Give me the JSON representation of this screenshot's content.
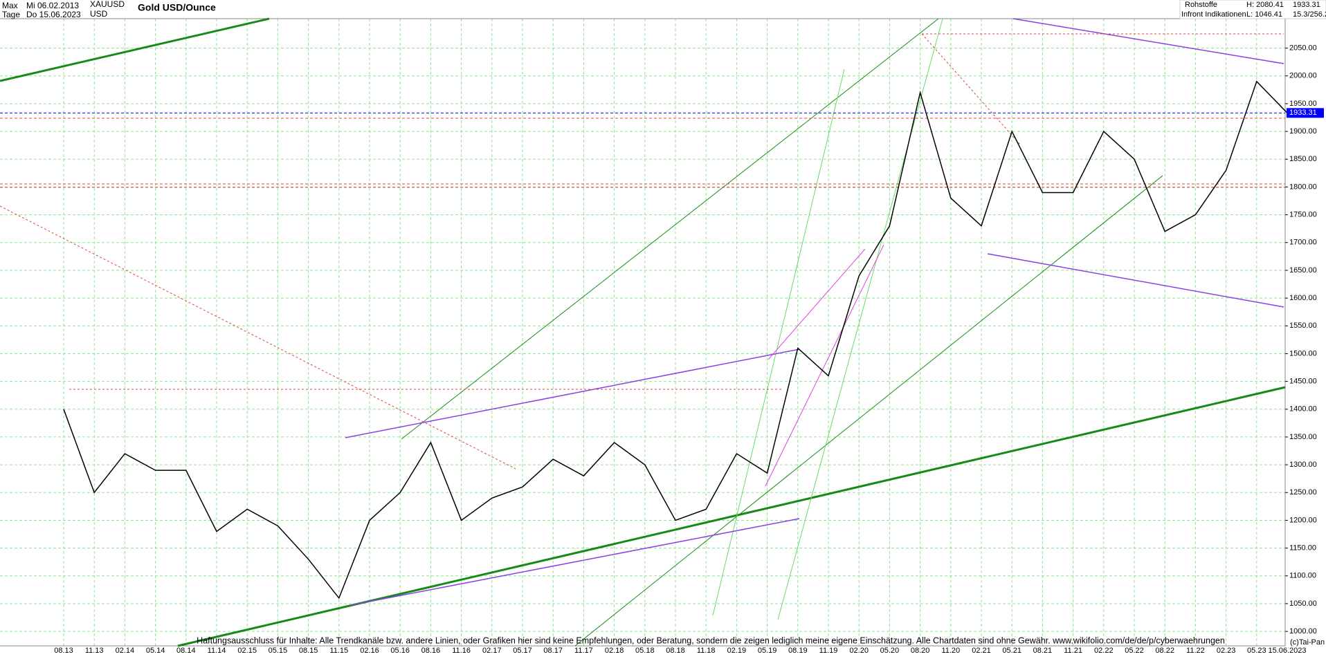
{
  "header": {
    "range": "Max",
    "from": "Mi 06.02.2013",
    "symbol": "XAUUSD",
    "period": "Tage",
    "to": "Do 15.06.2023",
    "currency": "USD",
    "title": "Gold USD/Ounce",
    "group": "Rohstoffe",
    "source": "Infront Indikationen",
    "high": "H: 2080.41",
    "low": "L: 1046.41",
    "last": "1933.31",
    "ratio": "15.3/256.2"
  },
  "footer": {
    "disclaimer": "Haftungsausschluss für Inhalte: Alle Trendkanäle bzw. andere Linien, oder Grafiken hier sind keine Empfehlungen, oder Beratung, sondern die zeigen lediglich meine eigene Einschätzung. Alle Chartdaten sind ohne Gewähr.  www.wikifolio.com/de/de/p/cyberwaehrungen",
    "copyright": "(c)Tai-Pan"
  },
  "chart_data": {
    "type": "line",
    "title": "Gold USD/Ounce",
    "x": [
      "08.13",
      "11.13",
      "02.14",
      "05.14",
      "08.14",
      "11.14",
      "02.15",
      "05.15",
      "08.15",
      "11.15",
      "02.16",
      "05.16",
      "08.16",
      "11.16",
      "02.17",
      "05.17",
      "08.17",
      "11.17",
      "02.18",
      "05.18",
      "08.18",
      "11.18",
      "02.19",
      "05.19",
      "08.19",
      "11.19",
      "02.20",
      "05.20",
      "08.20",
      "11.20",
      "02.21",
      "05.21",
      "08.21",
      "11.21",
      "02.22",
      "05.22",
      "08.22",
      "11.22",
      "02.23",
      "05.23",
      "15.06.2023"
    ],
    "series": [
      {
        "name": "XAUUSD",
        "color": "#000000",
        "values": [
          1400,
          1250,
          1320,
          1290,
          1290,
          1180,
          1220,
          1190,
          1130,
          1060,
          1200,
          1250,
          1340,
          1200,
          1240,
          1260,
          1310,
          1280,
          1340,
          1300,
          1200,
          1220,
          1320,
          1285,
          1510,
          1460,
          1640,
          1730,
          1970,
          1780,
          1730,
          1900,
          1790,
          1790,
          1900,
          1850,
          1720,
          1750,
          1830,
          1990,
          1933.31
        ]
      }
    ],
    "last_price": {
      "value": 1933.31,
      "label": "1933.31",
      "color": "#0000ff"
    },
    "ylim": [
      974,
      2103
    ],
    "yticks": [
      {
        "value": 1000,
        "label": "1000.00"
      },
      {
        "value": 1050,
        "label": "1050.00"
      },
      {
        "value": 1100,
        "label": "1100.00"
      },
      {
        "value": 1150,
        "label": "1150.00"
      },
      {
        "value": 1200,
        "label": "1200.00"
      },
      {
        "value": 1250,
        "label": "1250.00"
      },
      {
        "value": 1300,
        "label": "1300.00"
      },
      {
        "value": 1350,
        "label": "1350.00"
      },
      {
        "value": 1400,
        "label": "1400.00"
      },
      {
        "value": 1450,
        "label": "1450.00"
      },
      {
        "value": 1500,
        "label": "1500.00"
      },
      {
        "value": 1550,
        "label": "1550.00"
      },
      {
        "value": 1600,
        "label": "1600.00"
      },
      {
        "value": 1650,
        "label": "1650.00"
      },
      {
        "value": 1700,
        "label": "1700.00"
      },
      {
        "value": 1750,
        "label": "1750.00"
      },
      {
        "value": 1800,
        "label": "1800.00"
      },
      {
        "value": 1850,
        "label": "1850.00"
      },
      {
        "value": 1900,
        "label": "1900.00"
      },
      {
        "value": 1950,
        "label": "1950.00"
      },
      {
        "value": 2000,
        "label": "2000.00"
      },
      {
        "value": 2050,
        "label": "2050.00"
      }
    ],
    "grid": true
  }
}
